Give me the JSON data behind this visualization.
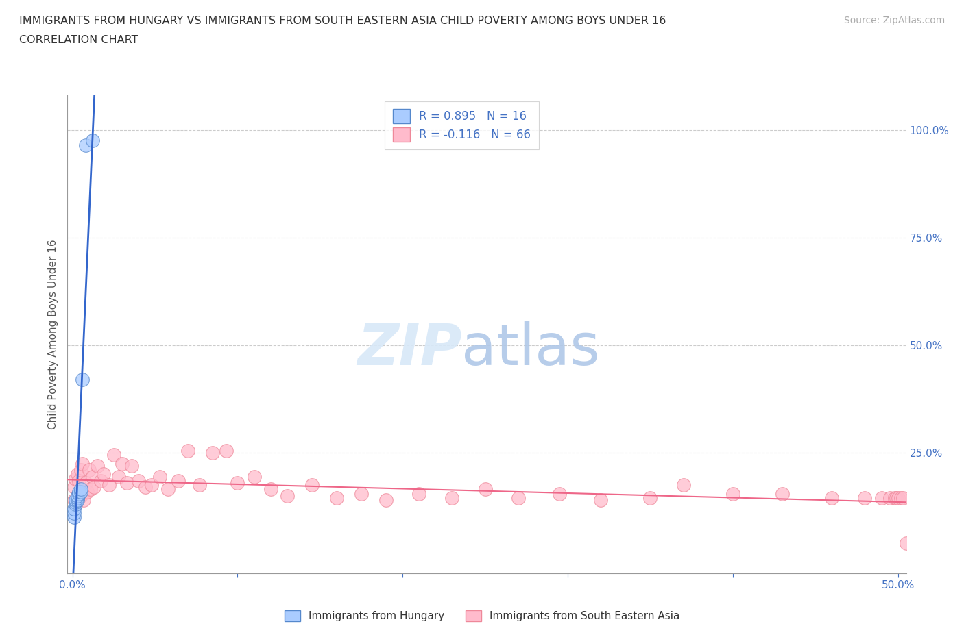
{
  "title_line1": "IMMIGRANTS FROM HUNGARY VS IMMIGRANTS FROM SOUTH EASTERN ASIA CHILD POVERTY AMONG BOYS UNDER 16",
  "title_line2": "CORRELATION CHART",
  "source_text": "Source: ZipAtlas.com",
  "ylabel": "Child Poverty Among Boys Under 16",
  "xlim": [
    -0.003,
    0.505
  ],
  "ylim": [
    -0.03,
    1.08
  ],
  "title_color": "#333333",
  "axis_color": "#4472c4",
  "grid_color": "#cccccc",
  "legend_r1": "R = 0.895",
  "legend_n1": "N = 16",
  "legend_r2": "R = -0.116",
  "legend_n2": "N = 66",
  "hungary_color": "#aaccff",
  "hungary_edge_color": "#5588cc",
  "hungary_line_color": "#3366cc",
  "sea_color": "#ffbbcc",
  "sea_edge_color": "#ee8899",
  "sea_line_color": "#ee6688",
  "hungary_x": [
    0.001,
    0.001,
    0.001,
    0.002,
    0.002,
    0.002,
    0.003,
    0.003,
    0.003,
    0.004,
    0.004,
    0.005,
    0.005,
    0.006,
    0.008,
    0.012
  ],
  "hungary_y": [
    0.1,
    0.11,
    0.12,
    0.13,
    0.135,
    0.14,
    0.14,
    0.145,
    0.15,
    0.155,
    0.16,
    0.16,
    0.165,
    0.42,
    0.965,
    0.975
  ],
  "sea_x": [
    0.001,
    0.001,
    0.002,
    0.002,
    0.003,
    0.003,
    0.004,
    0.004,
    0.005,
    0.005,
    0.006,
    0.006,
    0.007,
    0.008,
    0.009,
    0.01,
    0.011,
    0.012,
    0.013,
    0.015,
    0.017,
    0.019,
    0.022,
    0.025,
    0.028,
    0.03,
    0.033,
    0.036,
    0.04,
    0.044,
    0.048,
    0.053,
    0.058,
    0.064,
    0.07,
    0.077,
    0.085,
    0.093,
    0.1,
    0.11,
    0.12,
    0.13,
    0.145,
    0.16,
    0.175,
    0.19,
    0.21,
    0.23,
    0.25,
    0.27,
    0.295,
    0.32,
    0.35,
    0.37,
    0.4,
    0.43,
    0.46,
    0.48,
    0.49,
    0.495,
    0.498,
    0.499,
    0.5,
    0.502,
    0.503,
    0.505
  ],
  "sea_y": [
    0.14,
    0.17,
    0.13,
    0.19,
    0.15,
    0.2,
    0.145,
    0.185,
    0.15,
    0.21,
    0.155,
    0.225,
    0.14,
    0.18,
    0.16,
    0.21,
    0.165,
    0.195,
    0.17,
    0.22,
    0.185,
    0.2,
    0.175,
    0.245,
    0.195,
    0.225,
    0.18,
    0.22,
    0.185,
    0.17,
    0.175,
    0.195,
    0.165,
    0.185,
    0.255,
    0.175,
    0.25,
    0.255,
    0.18,
    0.195,
    0.165,
    0.15,
    0.175,
    0.145,
    0.155,
    0.14,
    0.155,
    0.145,
    0.165,
    0.145,
    0.155,
    0.14,
    0.145,
    0.175,
    0.155,
    0.155,
    0.145,
    0.145,
    0.145,
    0.145,
    0.145,
    0.145,
    0.145,
    0.145,
    0.145,
    0.04
  ]
}
